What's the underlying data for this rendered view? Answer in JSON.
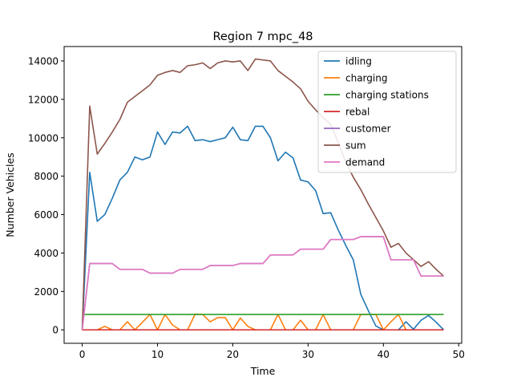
{
  "chart_data": {
    "type": "line",
    "title": "Region 7 mpc_48",
    "xlabel": "Time",
    "ylabel": "Number Vehicles",
    "xlim": [
      -2.4,
      50.4
    ],
    "ylim": [
      -700,
      14750
    ],
    "xticks": [
      0,
      10,
      20,
      30,
      40,
      50
    ],
    "yticks": [
      0,
      2000,
      4000,
      6000,
      8000,
      10000,
      12000,
      14000
    ],
    "legend_position": "top-right",
    "grid": false,
    "series": [
      {
        "name": "idling",
        "color": "#1f77b4",
        "x": [
          0,
          1,
          2,
          3,
          4,
          5,
          6,
          7,
          8,
          9,
          10,
          11,
          12,
          13,
          14,
          15,
          16,
          17,
          18,
          19,
          20,
          21,
          22,
          23,
          24,
          25,
          26,
          27,
          28,
          29,
          30,
          31,
          32,
          33,
          34,
          35,
          36,
          37,
          38,
          39,
          40,
          41,
          42,
          43,
          44,
          45,
          46,
          47,
          48
        ],
        "values": [
          0,
          8200,
          5650,
          6000,
          6850,
          7800,
          8200,
          9000,
          8850,
          9000,
          10300,
          9650,
          10300,
          10250,
          10600,
          9850,
          9900,
          9800,
          9900,
          10000,
          10550,
          9900,
          9850,
          10600,
          10600,
          10000,
          8800,
          9250,
          8950,
          7800,
          7700,
          7250,
          6050,
          6100,
          5200,
          4400,
          3650,
          1850,
          1000,
          200,
          0,
          0,
          0,
          420,
          30,
          500,
          750,
          400,
          0
        ]
      },
      {
        "name": "charging",
        "color": "#ff7f0e",
        "x": [
          0,
          1,
          2,
          3,
          4,
          5,
          6,
          7,
          8,
          9,
          10,
          11,
          12,
          13,
          14,
          15,
          16,
          17,
          18,
          19,
          20,
          21,
          22,
          23,
          24,
          25,
          26,
          27,
          28,
          29,
          30,
          31,
          32,
          33,
          34,
          35,
          36,
          37,
          38,
          39,
          40,
          41,
          42,
          43,
          44,
          45,
          46,
          47,
          48
        ],
        "values": [
          0,
          0,
          0,
          180,
          0,
          0,
          420,
          0,
          400,
          800,
          0,
          800,
          250,
          0,
          0,
          820,
          800,
          420,
          640,
          640,
          0,
          620,
          180,
          0,
          0,
          0,
          800,
          0,
          0,
          500,
          0,
          0,
          800,
          0,
          0,
          0,
          0,
          800,
          800,
          800,
          0,
          420,
          800,
          0,
          0,
          0,
          0,
          0,
          0
        ]
      },
      {
        "name": "charging stations",
        "color": "#2ca02c",
        "x": [
          0,
          48
        ],
        "values": [
          800,
          800
        ]
      },
      {
        "name": "rebal",
        "color": "#d62728",
        "x": [
          0,
          48
        ],
        "values": [
          0,
          0
        ]
      },
      {
        "name": "customer",
        "color": "#9467bd",
        "x": [
          0,
          1,
          2,
          3,
          4,
          5,
          6,
          7,
          8,
          9,
          10,
          11,
          12,
          13,
          14,
          15,
          16,
          17,
          18,
          19,
          20,
          21,
          22,
          23,
          24,
          25,
          26,
          27,
          28,
          29,
          30,
          31,
          32,
          33,
          34,
          35,
          36,
          37,
          38,
          39,
          40,
          41,
          42,
          43,
          44,
          45,
          46,
          47,
          48
        ],
        "values": [
          0,
          3450,
          3450,
          3450,
          3450,
          3150,
          3150,
          3150,
          3150,
          2950,
          2950,
          2950,
          2950,
          3150,
          3150,
          3150,
          3150,
          3350,
          3350,
          3350,
          3350,
          3450,
          3450,
          3450,
          3450,
          3900,
          3900,
          3900,
          3900,
          4200,
          4200,
          4200,
          4200,
          4700,
          4700,
          4700,
          4700,
          4850,
          4850,
          4850,
          4850,
          3650,
          3650,
          3650,
          3650,
          2800,
          2800,
          2800,
          2800
        ]
      },
      {
        "name": "sum",
        "color": "#8c564b",
        "x": [
          0,
          1,
          2,
          3,
          4,
          5,
          6,
          7,
          8,
          9,
          10,
          11,
          12,
          13,
          14,
          15,
          16,
          17,
          18,
          19,
          20,
          21,
          22,
          23,
          24,
          25,
          26,
          27,
          28,
          29,
          30,
          31,
          32,
          33,
          34,
          35,
          36,
          37,
          38,
          39,
          40,
          41,
          42,
          43,
          44,
          45,
          46,
          47,
          48
        ],
        "values": [
          0,
          11650,
          9150,
          9700,
          10300,
          10950,
          11850,
          12150,
          12450,
          12750,
          13250,
          13400,
          13500,
          13400,
          13750,
          13800,
          13900,
          13600,
          13900,
          14000,
          13950,
          14000,
          13500,
          14100,
          14050,
          14000,
          13500,
          13200,
          12900,
          12550,
          11900,
          11450,
          11050,
          10700,
          9750,
          8750,
          7950,
          7300,
          6550,
          5850,
          5150,
          4300,
          4500,
          4000,
          3650,
          3300,
          3550,
          3150,
          2800
        ]
      },
      {
        "name": "demand",
        "color": "#e377c2",
        "x": [
          0,
          1,
          2,
          3,
          4,
          5,
          6,
          7,
          8,
          9,
          10,
          11,
          12,
          13,
          14,
          15,
          16,
          17,
          18,
          19,
          20,
          21,
          22,
          23,
          24,
          25,
          26,
          27,
          28,
          29,
          30,
          31,
          32,
          33,
          34,
          35,
          36,
          37,
          38,
          39,
          40,
          41,
          42,
          43,
          44,
          45,
          46,
          47,
          48
        ],
        "values": [
          0,
          3450,
          3450,
          3450,
          3450,
          3150,
          3150,
          3150,
          3150,
          2950,
          2950,
          2950,
          2950,
          3150,
          3150,
          3150,
          3150,
          3350,
          3350,
          3350,
          3350,
          3450,
          3450,
          3450,
          3450,
          3900,
          3900,
          3900,
          3900,
          4200,
          4200,
          4200,
          4200,
          4700,
          4700,
          4700,
          4700,
          4850,
          4850,
          4850,
          4850,
          3650,
          3650,
          3650,
          3650,
          2800,
          2800,
          2800,
          2800
        ]
      }
    ]
  }
}
